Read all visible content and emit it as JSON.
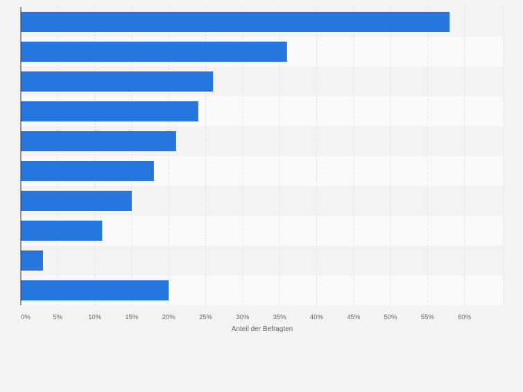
{
  "chart_data": {
    "type": "bar",
    "orientation": "horizontal",
    "categories": [
      "",
      "",
      "",
      "",
      "",
      "",
      "",
      "",
      "",
      ""
    ],
    "values": [
      58,
      36,
      26,
      24,
      21,
      18,
      15,
      11,
      3,
      20
    ],
    "xlabel": "Anteil der Befragten",
    "ylabel": "",
    "xlim": [
      0,
      65
    ],
    "xticks": [
      0,
      5,
      10,
      15,
      20,
      25,
      30,
      35,
      40,
      45,
      50,
      55,
      60
    ],
    "tick_labels": [
      "0%",
      "5%",
      "10%",
      "15%",
      "20%",
      "25%",
      "30%",
      "35%",
      "40%",
      "45%",
      "50%",
      "55%",
      "60%"
    ],
    "grid": true,
    "colors": {
      "bar": "#2776dd",
      "band_light": "#fafafa",
      "band_dark": "#f3f3f3",
      "grid": "#dedede",
      "axis": "#333333",
      "tick_text": "#666666"
    }
  }
}
